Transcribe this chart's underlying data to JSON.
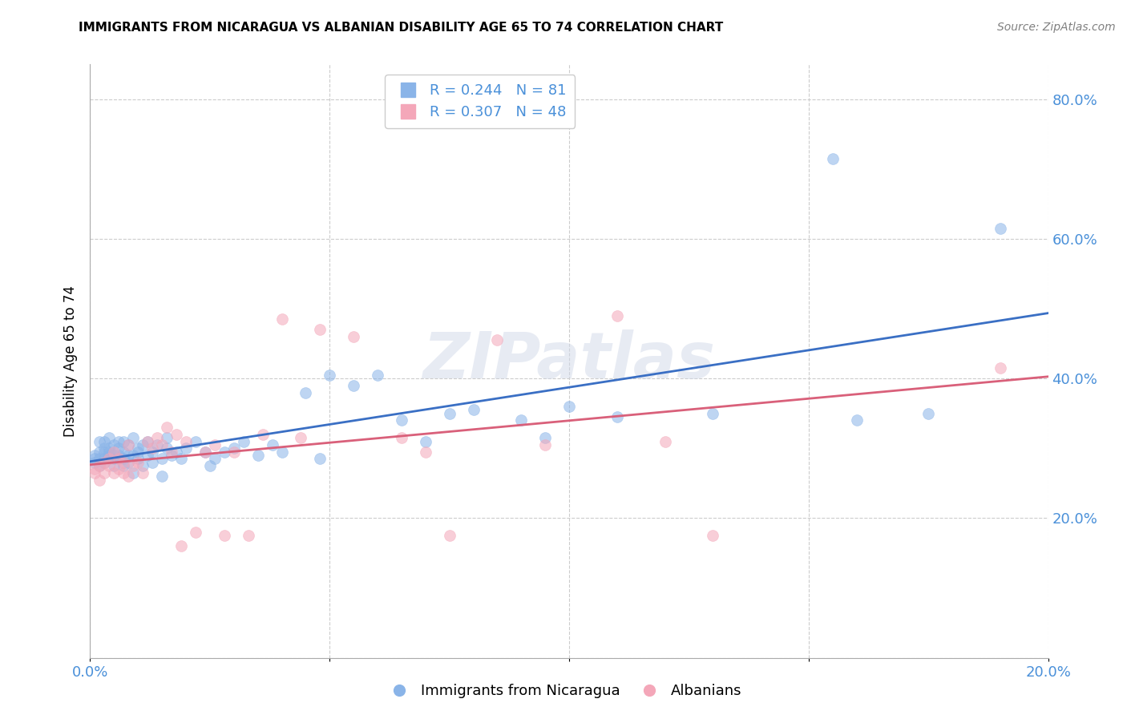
{
  "title": "IMMIGRANTS FROM NICARAGUA VS ALBANIAN DISABILITY AGE 65 TO 74 CORRELATION CHART",
  "source": "Source: ZipAtlas.com",
  "ylabel_label": "Disability Age 65 to 74",
  "x_min": 0.0,
  "x_max": 0.2,
  "y_min": 0.0,
  "y_max": 0.85,
  "x_ticks": [
    0.0,
    0.05,
    0.1,
    0.15,
    0.2
  ],
  "x_tick_labels": [
    "0.0%",
    "",
    "",
    "",
    "20.0%"
  ],
  "y_ticks": [
    0.0,
    0.2,
    0.4,
    0.6,
    0.8
  ],
  "y_tick_labels_right": [
    "",
    "20.0%",
    "40.0%",
    "60.0%",
    "80.0%"
  ],
  "color_blue": "#8ab4e8",
  "color_pink": "#f4a7b9",
  "line_color_blue": "#3a6fc4",
  "line_color_pink": "#d9607a",
  "legend_R1": "0.244",
  "legend_N1": "81",
  "legend_R2": "0.307",
  "legend_N2": "48",
  "legend_label1": "Immigrants from Nicaragua",
  "legend_label2": "Albanians",
  "watermark": "ZIPatlas",
  "blue_x": [
    0.001,
    0.001,
    0.001,
    0.002,
    0.002,
    0.002,
    0.002,
    0.003,
    0.003,
    0.003,
    0.003,
    0.003,
    0.004,
    0.004,
    0.004,
    0.004,
    0.004,
    0.005,
    0.005,
    0.005,
    0.005,
    0.006,
    0.006,
    0.006,
    0.006,
    0.007,
    0.007,
    0.007,
    0.007,
    0.008,
    0.008,
    0.008,
    0.009,
    0.009,
    0.009,
    0.01,
    0.01,
    0.01,
    0.011,
    0.011,
    0.012,
    0.012,
    0.013,
    0.013,
    0.014,
    0.015,
    0.015,
    0.016,
    0.016,
    0.017,
    0.018,
    0.019,
    0.02,
    0.022,
    0.024,
    0.025,
    0.026,
    0.028,
    0.03,
    0.032,
    0.035,
    0.038,
    0.04,
    0.045,
    0.048,
    0.05,
    0.055,
    0.06,
    0.065,
    0.07,
    0.075,
    0.08,
    0.09,
    0.095,
    0.1,
    0.11,
    0.13,
    0.155,
    0.16,
    0.175,
    0.19
  ],
  "blue_y": [
    0.29,
    0.285,
    0.28,
    0.295,
    0.285,
    0.275,
    0.31,
    0.295,
    0.3,
    0.285,
    0.28,
    0.31,
    0.3,
    0.285,
    0.29,
    0.315,
    0.295,
    0.29,
    0.285,
    0.275,
    0.305,
    0.3,
    0.285,
    0.31,
    0.29,
    0.285,
    0.295,
    0.31,
    0.275,
    0.29,
    0.305,
    0.28,
    0.315,
    0.29,
    0.265,
    0.285,
    0.3,
    0.295,
    0.305,
    0.275,
    0.29,
    0.31,
    0.295,
    0.28,
    0.305,
    0.285,
    0.26,
    0.3,
    0.315,
    0.29,
    0.295,
    0.285,
    0.3,
    0.31,
    0.295,
    0.275,
    0.285,
    0.295,
    0.3,
    0.31,
    0.29,
    0.305,
    0.295,
    0.38,
    0.285,
    0.405,
    0.39,
    0.405,
    0.34,
    0.31,
    0.35,
    0.355,
    0.34,
    0.315,
    0.36,
    0.345,
    0.35,
    0.715,
    0.34,
    0.35,
    0.615
  ],
  "pink_x": [
    0.001,
    0.001,
    0.002,
    0.002,
    0.003,
    0.003,
    0.004,
    0.004,
    0.005,
    0.005,
    0.006,
    0.006,
    0.007,
    0.007,
    0.008,
    0.008,
    0.009,
    0.01,
    0.011,
    0.012,
    0.013,
    0.014,
    0.015,
    0.016,
    0.017,
    0.018,
    0.019,
    0.02,
    0.022,
    0.024,
    0.026,
    0.028,
    0.03,
    0.033,
    0.036,
    0.04,
    0.044,
    0.048,
    0.055,
    0.065,
    0.07,
    0.075,
    0.085,
    0.095,
    0.11,
    0.12,
    0.13,
    0.19
  ],
  "pink_y": [
    0.27,
    0.265,
    0.275,
    0.255,
    0.28,
    0.265,
    0.275,
    0.285,
    0.265,
    0.295,
    0.27,
    0.285,
    0.265,
    0.28,
    0.305,
    0.26,
    0.275,
    0.28,
    0.265,
    0.31,
    0.3,
    0.315,
    0.305,
    0.33,
    0.295,
    0.32,
    0.16,
    0.31,
    0.18,
    0.295,
    0.305,
    0.175,
    0.295,
    0.175,
    0.32,
    0.485,
    0.315,
    0.47,
    0.46,
    0.315,
    0.295,
    0.175,
    0.455,
    0.305,
    0.49,
    0.31,
    0.175,
    0.415
  ]
}
